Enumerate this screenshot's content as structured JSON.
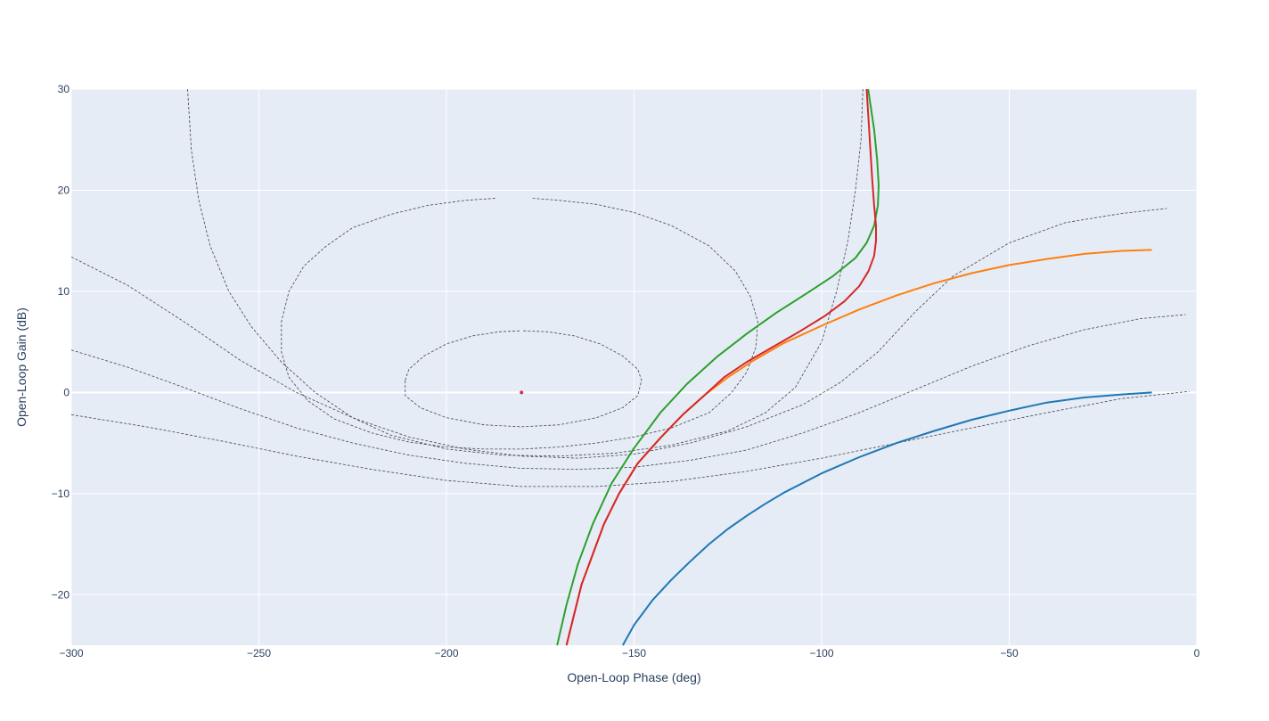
{
  "chart_data": {
    "type": "line",
    "title": "",
    "xlabel": "Open-Loop Phase (deg)",
    "ylabel": "Open-Loop Gain (dB)",
    "xlim": [
      -300,
      0
    ],
    "ylim": [
      -25,
      30
    ],
    "grid": true,
    "legend": "none",
    "xticks": [
      -300,
      -250,
      -200,
      -150,
      -100,
      -50,
      0
    ],
    "xtick_labels": [
      "−300",
      "−250",
      "−200",
      "−150",
      "−100",
      "−50",
      "0"
    ],
    "yticks": [
      -20,
      -10,
      0,
      10,
      20,
      30
    ],
    "ytick_labels": [
      "−20",
      "−10",
      "0",
      "10",
      "20",
      "30"
    ],
    "colors": {
      "background": "#e5ecf6",
      "grid": "#ffffff",
      "contour": "#444444",
      "critical_point": "#e0284f"
    },
    "critical_point": {
      "x": -180,
      "y": 0
    },
    "contours": [
      {
        "points": [
          [
            -211,
            1.2
          ],
          [
            -210,
            2.3
          ],
          [
            -206,
            3.6
          ],
          [
            -200,
            4.8
          ],
          [
            -193,
            5.6
          ],
          [
            -186,
            6.0
          ],
          [
            -180.5,
            6.1
          ]
        ]
      },
      {
        "points": [
          [
            -179.5,
            6.1
          ],
          [
            -173,
            6.0
          ],
          [
            -166,
            5.6
          ],
          [
            -159,
            4.8
          ],
          [
            -153,
            3.6
          ],
          [
            -149,
            2.3
          ],
          [
            -148,
            1.2
          ],
          [
            -149,
            -0.3
          ],
          [
            -153,
            -1.5
          ],
          [
            -160,
            -2.5
          ],
          [
            -170,
            -3.2
          ],
          [
            -180,
            -3.4
          ],
          [
            -190,
            -3.2
          ],
          [
            -200,
            -2.5
          ],
          [
            -207,
            -1.5
          ],
          [
            -211,
            -0.3
          ],
          [
            -211,
            1.2
          ]
        ]
      },
      {
        "points": [
          [
            -187,
            19.2
          ],
          [
            -195,
            19.0
          ],
          [
            -205,
            18.5
          ],
          [
            -215,
            17.6
          ],
          [
            -225,
            16.3
          ],
          [
            -232,
            14.5
          ],
          [
            -238,
            12.5
          ],
          [
            -242,
            10.0
          ],
          [
            -244,
            7.0
          ],
          [
            -244,
            4.0
          ],
          [
            -242,
            1.5
          ],
          [
            -237,
            -0.8
          ],
          [
            -230,
            -2.6
          ],
          [
            -220,
            -4.0
          ],
          [
            -210,
            -4.9
          ],
          [
            -200,
            -5.4
          ],
          [
            -190,
            -5.6
          ],
          [
            -180,
            -5.6
          ],
          [
            -170,
            -5.4
          ],
          [
            -160,
            -5.0
          ],
          [
            -150,
            -4.4
          ],
          [
            -140,
            -3.5
          ],
          [
            -130,
            -2.0
          ],
          [
            -124,
            0.0
          ],
          [
            -120,
            2.0
          ],
          [
            -117.5,
            4.5
          ],
          [
            -117,
            7.0
          ],
          [
            -119,
            9.5
          ],
          [
            -123,
            12.0
          ],
          [
            -130,
            14.5
          ],
          [
            -140,
            16.5
          ],
          [
            -150,
            17.8
          ],
          [
            -160,
            18.6
          ],
          [
            -170,
            19.0
          ],
          [
            -177,
            19.2
          ]
        ]
      },
      {
        "points": [
          [
            -269,
            30.0
          ],
          [
            -268,
            24.0
          ],
          [
            -266,
            19.0
          ],
          [
            -263,
            14.5
          ],
          [
            -258,
            10.0
          ],
          [
            -252,
            6.5
          ],
          [
            -244,
            3.0
          ],
          [
            -235,
            0.0
          ],
          [
            -225,
            -2.5
          ],
          [
            -215,
            -4.2
          ],
          [
            -200,
            -5.6
          ],
          [
            -185,
            -6.2
          ],
          [
            -170,
            -6.3
          ],
          [
            -155,
            -6.0
          ],
          [
            -140,
            -5.2
          ],
          [
            -125,
            -3.8
          ],
          [
            -115,
            -2.0
          ],
          [
            -107,
            0.5
          ],
          [
            -100,
            5.0
          ],
          [
            -96,
            10.0
          ],
          [
            -93,
            15.0
          ],
          [
            -91,
            20.0
          ],
          [
            -89.5,
            25.0
          ],
          [
            -89,
            30.0
          ]
        ]
      },
      {
        "points": [
          [
            -300,
            13.4
          ],
          [
            -285,
            10.6
          ],
          [
            -270,
            7.0
          ],
          [
            -255,
            3.2
          ],
          [
            -240,
            0.0
          ],
          [
            -225,
            -2.5
          ],
          [
            -210,
            -4.4
          ],
          [
            -195,
            -5.6
          ],
          [
            -180,
            -6.3
          ],
          [
            -165,
            -6.5
          ],
          [
            -150,
            -6.1
          ],
          [
            -135,
            -5.0
          ],
          [
            -120,
            -3.4
          ],
          [
            -105,
            -1.2
          ],
          [
            -95,
            1.0
          ],
          [
            -85,
            4.0
          ],
          [
            -75,
            8.0
          ],
          [
            -65,
            11.5
          ],
          [
            -50,
            14.8
          ],
          [
            -35,
            16.8
          ],
          [
            -20,
            17.7
          ],
          [
            -8,
            18.2
          ]
        ]
      },
      {
        "points": [
          [
            -300,
            4.2
          ],
          [
            -285,
            2.5
          ],
          [
            -270,
            0.5
          ],
          [
            -255,
            -1.6
          ],
          [
            -240,
            -3.5
          ],
          [
            -225,
            -5.0
          ],
          [
            -210,
            -6.2
          ],
          [
            -195,
            -7.0
          ],
          [
            -180,
            -7.5
          ],
          [
            -165,
            -7.6
          ],
          [
            -150,
            -7.4
          ],
          [
            -135,
            -6.7
          ],
          [
            -120,
            -5.7
          ],
          [
            -105,
            -4.0
          ],
          [
            -90,
            -2.0
          ],
          [
            -75,
            0.3
          ],
          [
            -60,
            2.6
          ],
          [
            -45,
            4.6
          ],
          [
            -30,
            6.2
          ],
          [
            -15,
            7.3
          ],
          [
            -3,
            7.7
          ]
        ]
      },
      {
        "points": [
          [
            -300,
            -2.2
          ],
          [
            -280,
            -3.4
          ],
          [
            -260,
            -4.8
          ],
          [
            -240,
            -6.3
          ],
          [
            -220,
            -7.6
          ],
          [
            -200,
            -8.7
          ],
          [
            -180,
            -9.3
          ],
          [
            -160,
            -9.3
          ],
          [
            -140,
            -8.8
          ],
          [
            -120,
            -7.8
          ],
          [
            -100,
            -6.5
          ],
          [
            -80,
            -5.0
          ],
          [
            -60,
            -3.5
          ],
          [
            -40,
            -2.0
          ],
          [
            -20,
            -0.6
          ],
          [
            -2,
            0.1
          ]
        ]
      }
    ],
    "series": [
      {
        "color": "#1f77b4",
        "points": [
          [
            -153,
            -25.0
          ],
          [
            -150,
            -23.0
          ],
          [
            -145,
            -20.5
          ],
          [
            -140,
            -18.5
          ],
          [
            -135,
            -16.7
          ],
          [
            -130,
            -15.0
          ],
          [
            -125,
            -13.5
          ],
          [
            -120,
            -12.2
          ],
          [
            -115,
            -11.0
          ],
          [
            -110,
            -9.9
          ],
          [
            -100,
            -8.0
          ],
          [
            -90,
            -6.4
          ],
          [
            -80,
            -5.0
          ],
          [
            -70,
            -3.8
          ],
          [
            -60,
            -2.7
          ],
          [
            -50,
            -1.8
          ],
          [
            -40,
            -1.0
          ],
          [
            -30,
            -0.5
          ],
          [
            -20,
            -0.2
          ],
          [
            -12,
            0.0
          ]
        ]
      },
      {
        "color": "#ff7f0e",
        "points": [
          [
            -168,
            -25.0
          ],
          [
            -166,
            -22.0
          ],
          [
            -164,
            -19.0
          ],
          [
            -161,
            -16.0
          ],
          [
            -158,
            -13.0
          ],
          [
            -154,
            -10.0
          ],
          [
            -149,
            -7.0
          ],
          [
            -143,
            -4.5
          ],
          [
            -137,
            -2.2
          ],
          [
            -131,
            -0.2
          ],
          [
            -125,
            1.5
          ],
          [
            -118,
            3.2
          ],
          [
            -110,
            4.9
          ],
          [
            -100,
            6.6
          ],
          [
            -90,
            8.2
          ],
          [
            -80,
            9.6
          ],
          [
            -70,
            10.8
          ],
          [
            -60,
            11.8
          ],
          [
            -50,
            12.6
          ],
          [
            -40,
            13.2
          ],
          [
            -30,
            13.7
          ],
          [
            -20,
            14.0
          ],
          [
            -12,
            14.1
          ]
        ]
      },
      {
        "color": "#2ca02c",
        "points": [
          [
            -170.5,
            -25.0
          ],
          [
            -168,
            -21.0
          ],
          [
            -165,
            -17.0
          ],
          [
            -161,
            -13.0
          ],
          [
            -156,
            -9.0
          ],
          [
            -150,
            -5.5
          ],
          [
            -143,
            -2.0
          ],
          [
            -136,
            0.8
          ],
          [
            -128,
            3.5
          ],
          [
            -120,
            5.8
          ],
          [
            -112,
            7.9
          ],
          [
            -104,
            9.8
          ],
          [
            -97,
            11.5
          ],
          [
            -91,
            13.3
          ],
          [
            -88,
            14.8
          ],
          [
            -86,
            16.5
          ],
          [
            -85,
            18.5
          ],
          [
            -84.8,
            20.5
          ],
          [
            -85.2,
            23.0
          ],
          [
            -86,
            26.0
          ],
          [
            -87,
            28.5
          ],
          [
            -87.6,
            30.0
          ]
        ]
      },
      {
        "color": "#d62728",
        "points": [
          [
            -168,
            -25.0
          ],
          [
            -166,
            -22.0
          ],
          [
            -164,
            -19.0
          ],
          [
            -161,
            -16.0
          ],
          [
            -158,
            -13.0
          ],
          [
            -154,
            -10.0
          ],
          [
            -149,
            -7.0
          ],
          [
            -143,
            -4.5
          ],
          [
            -137,
            -2.2
          ],
          [
            -131,
            -0.2
          ],
          [
            -126,
            1.5
          ],
          [
            -120,
            3.0
          ],
          [
            -113,
            4.5
          ],
          [
            -106,
            6.0
          ],
          [
            -99,
            7.6
          ],
          [
            -94,
            9.0
          ],
          [
            -90,
            10.5
          ],
          [
            -87.5,
            12.0
          ],
          [
            -86,
            13.5
          ],
          [
            -85.5,
            15.0
          ],
          [
            -85.5,
            16.5
          ],
          [
            -86,
            18.5
          ],
          [
            -86.5,
            21.0
          ],
          [
            -87,
            24.0
          ],
          [
            -87.5,
            27.0
          ],
          [
            -88,
            30.0
          ]
        ]
      }
    ]
  }
}
